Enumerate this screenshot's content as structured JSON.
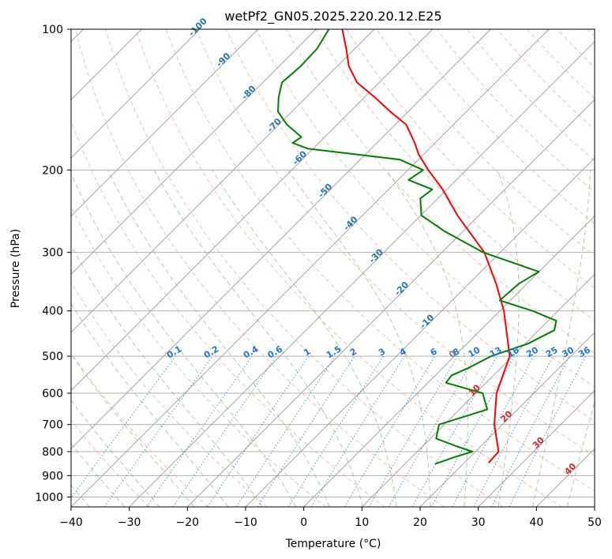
{
  "chart_data": {
    "type": "line",
    "title": "wetPf2_GN05.2025.220.20.12.E25",
    "xlabel": "Temperature (°C)",
    "ylabel": "Pressure (hPa)",
    "xlim": [
      -40,
      50
    ],
    "ylim": [
      1050,
      100
    ],
    "y_scale": "log",
    "grid": true,
    "x_ticks": [
      -40,
      -30,
      -20,
      -10,
      0,
      10,
      20,
      30,
      40,
      50
    ],
    "x_tick_labels": [
      "−40",
      "−30",
      "−20",
      "−10",
      "0",
      "10",
      "20",
      "30",
      "40",
      "50"
    ],
    "y_ticks": [
      1000,
      900,
      800,
      700,
      600,
      500,
      400,
      300,
      200,
      100
    ],
    "y_tick_labels": [
      "1000",
      "900",
      "800",
      "700",
      "600",
      "500",
      "400",
      "300",
      "200",
      "100"
    ],
    "skew": "45 degrees",
    "background_lines": {
      "isotherm_color": "#808080",
      "dry_adiabat_color": "#ff9c7a",
      "moist_adiabat_color": "#7fbf7f",
      "mixing_ratio_color": "#1f77e0",
      "isotherm_label_color_cold": "#1f77b4",
      "isotherm_label_color_warm": "#d62728",
      "isotherm_labels": [
        "-100",
        "-90",
        "-80",
        "-70",
        "-60",
        "-50",
        "-40",
        "-30",
        "-20",
        "-10",
        "0",
        "10",
        "20",
        "30",
        "40"
      ],
      "mixing_ratio_labels": [
        "0.1",
        "0.2",
        "0.4",
        "0.6",
        "1",
        "1.5",
        "2",
        "3",
        "4",
        "6",
        "8",
        "10",
        "13",
        "16",
        "20",
        "25",
        "30",
        "36"
      ]
    },
    "series": [
      {
        "color": "#ff0000",
        "pressure": [
          845,
          800,
          700,
          600,
          500,
          400,
          350,
          300,
          250,
          220,
          200,
          185,
          175,
          160,
          150,
          140,
          130,
          120,
          110,
          100
        ],
        "temperature": [
          24.2,
          24,
          18.6,
          13.6,
          9.5,
          0.7,
          -5.3,
          -12.7,
          -23.7,
          -30.7,
          -36.5,
          -40.9,
          -43.5,
          -48.1,
          -53.1,
          -58.1,
          -63.8,
          -68.0,
          -71.5,
          -75.5
        ]
      },
      {
        "color": "#008000",
        "pressure": [
          850,
          820,
          800,
          780,
          750,
          700,
          650,
          600,
          570,
          550,
          530,
          500,
          470,
          440,
          420,
          400,
          380,
          350,
          330,
          300,
          270,
          250,
          230,
          220,
          210,
          200,
          190,
          180,
          175,
          170,
          160,
          150,
          140,
          130,
          120,
          110,
          100
        ],
        "temperature": [
          15.2,
          17.5,
          19.5,
          16,
          11,
          9.1,
          14.8,
          11.2,
          3.1,
          2.8,
          4.4,
          6.3,
          10.5,
          12.7,
          11.4,
          5.6,
          -1.8,
          -1.4,
          0.0,
          -12.9,
          -23.3,
          -29.9,
          -33.0,
          -32.5,
          -38.2,
          -37.4,
          -43.2,
          -60.9,
          -64.5,
          -64.0,
          -68.6,
          -72.4,
          -74.7,
          -76.7,
          -76.3,
          -76.5,
          -77.8
        ]
      }
    ]
  }
}
